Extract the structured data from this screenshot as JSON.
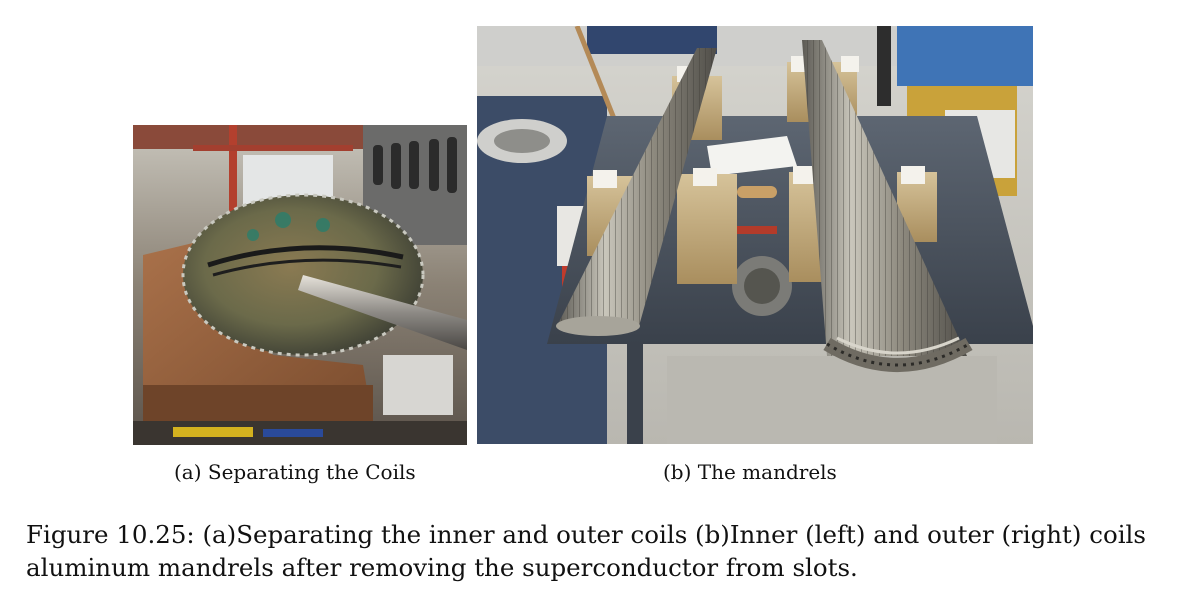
{
  "figure": {
    "subfigures": [
      {
        "caption": "(a) Separating the Coils",
        "image": "photo-separating-coils"
      },
      {
        "caption": "(b) The mandrels",
        "image": "photo-aluminum-mandrels"
      }
    ],
    "caption_line1": "Figure 10.25: (a)Separating the inner and outer coils (b)Inner (left) and outer (right) coils",
    "caption_line2": "aluminum mandrels after removing the superconductor from slots."
  }
}
